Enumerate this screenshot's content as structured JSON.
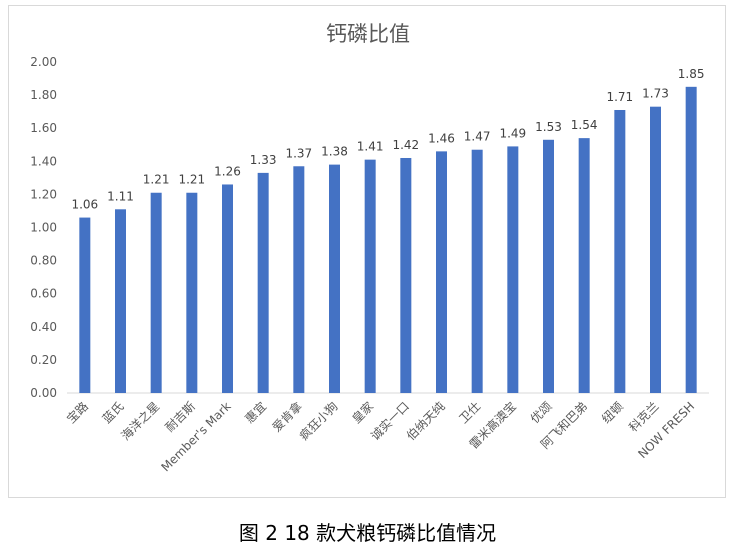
{
  "chart_data": {
    "type": "bar",
    "title": "钙磷比值",
    "categories": [
      "宝路",
      "蓝氏",
      "海洋之星",
      "耐吉斯",
      "Member's Mark",
      "惠宜",
      "爱肯拿",
      "疯狂小狗",
      "皇家",
      "诚实一口",
      "伯纳天纯",
      "卫仕",
      "雷米高澳宝",
      "优颂",
      "阿飞和巴弟",
      "纽顿",
      "科克兰",
      "NOW FRESH"
    ],
    "values": [
      1.06,
      1.11,
      1.21,
      1.21,
      1.26,
      1.33,
      1.37,
      1.38,
      1.41,
      1.42,
      1.46,
      1.47,
      1.49,
      1.53,
      1.54,
      1.71,
      1.73,
      1.85
    ],
    "data_labels": [
      "1.06",
      "1.11",
      "1.21",
      "1.21",
      "1.26",
      "1.33",
      "1.37",
      "1.38",
      "1.41",
      "1.42",
      "1.46",
      "1.47",
      "1.49",
      "1.53",
      "1.54",
      "1.71",
      "1.73",
      "1.85"
    ],
    "yticks": [
      "0.00",
      "0.20",
      "0.40",
      "0.60",
      "0.80",
      "1.00",
      "1.20",
      "1.40",
      "1.60",
      "1.80",
      "2.00"
    ],
    "ylim": [
      0,
      2.0
    ],
    "xlabel": "",
    "ylabel": "",
    "grid": false,
    "legend": "none",
    "bar_color": "#4472c4"
  },
  "caption": "图 2  18 款犬粮钙磷比值情况"
}
